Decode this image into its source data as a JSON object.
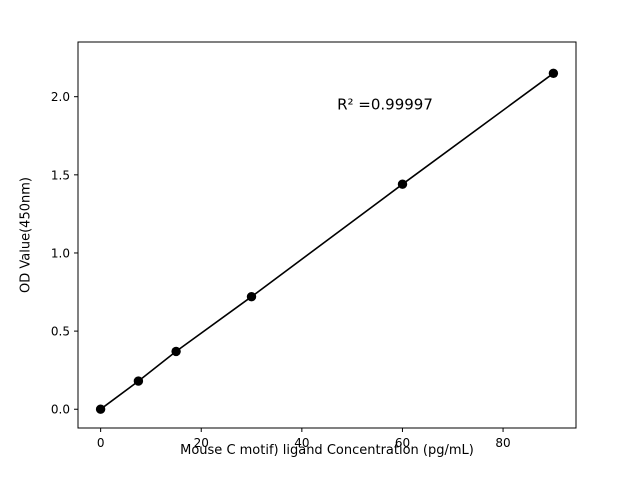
{
  "chart_data": {
    "type": "scatter",
    "title": "",
    "xlabel": "Mouse C motif) ligand Concentration (pg/mL)",
    "ylabel": "OD Value(450nm)",
    "x": [
      0,
      7.5,
      15,
      30,
      60,
      90
    ],
    "y": [
      0.0,
      0.18,
      0.37,
      0.72,
      1.44,
      2.15
    ],
    "annotation": {
      "text": "R² =0.99997",
      "x": 47,
      "y": 1.95
    },
    "xlim": [
      -4.5,
      94.5
    ],
    "ylim": [
      -0.12,
      2.35
    ],
    "xticks": [
      0,
      20,
      40,
      60,
      80
    ],
    "xtick_labels": [
      "0",
      "20",
      "40",
      "60",
      "80"
    ],
    "yticks": [
      0.0,
      0.5,
      1.0,
      1.5,
      2.0
    ],
    "ytick_labels": [
      "0.0",
      "0.5",
      "1.0",
      "1.5",
      "2.0"
    ],
    "grid": false,
    "legend": "none",
    "line_style": "solid",
    "marker": "circle",
    "colors": {
      "line": "#000000",
      "marker": "#000000",
      "axis": "#000000",
      "text": "#000000",
      "background": "#ffffff"
    }
  }
}
